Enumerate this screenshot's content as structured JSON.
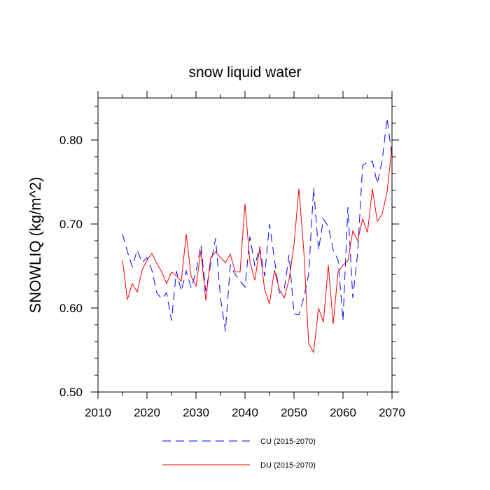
{
  "chart_data": {
    "type": "line",
    "title": "snow liquid water",
    "xlabel": "",
    "ylabel": "SNOWLIQ  (kg/m^2)",
    "xlim": [
      2010,
      2070
    ],
    "ylim": [
      0.5,
      0.85
    ],
    "xticks": [
      2010,
      2020,
      2030,
      2040,
      2050,
      2060,
      2070
    ],
    "xtick_labels": [
      "2010",
      "2020",
      "2030",
      "2040",
      "2050",
      "2060",
      "2070"
    ],
    "yticks": [
      0.5,
      0.6,
      0.7,
      0.8
    ],
    "ytick_labels": [
      "0.50",
      "0.60",
      "0.70",
      "0.80"
    ],
    "grid": false,
    "legend_position": "bottom",
    "x": [
      2015,
      2016,
      2017,
      2018,
      2019,
      2020,
      2021,
      2022,
      2023,
      2024,
      2025,
      2026,
      2027,
      2028,
      2029,
      2030,
      2031,
      2032,
      2033,
      2034,
      2035,
      2036,
      2037,
      2038,
      2039,
      2040,
      2041,
      2042,
      2043,
      2044,
      2045,
      2046,
      2047,
      2048,
      2049,
      2050,
      2051,
      2052,
      2053,
      2054,
      2055,
      2056,
      2057,
      2058,
      2059,
      2060,
      2061,
      2062,
      2063,
      2064,
      2065,
      2066,
      2067,
      2068,
      2069,
      2070
    ],
    "series": [
      {
        "name": "CU (2015-2070)",
        "color": "#0000ff",
        "style": "dashed",
        "values": [
          0.688,
          0.667,
          0.649,
          0.669,
          0.654,
          0.66,
          0.645,
          0.618,
          0.611,
          0.618,
          0.585,
          0.644,
          0.62,
          0.644,
          0.624,
          0.643,
          0.675,
          0.62,
          0.652,
          0.683,
          0.612,
          0.572,
          0.651,
          0.64,
          0.632,
          0.625,
          0.685,
          0.65,
          0.673,
          0.638,
          0.7,
          0.658,
          0.618,
          0.622,
          0.663,
          0.593,
          0.592,
          0.612,
          0.64,
          0.743,
          0.669,
          0.706,
          0.697,
          0.669,
          0.657,
          0.585,
          0.72,
          0.612,
          0.666,
          0.77,
          0.773,
          0.775,
          0.748,
          0.776,
          0.826,
          0.78
        ]
      },
      {
        "name": "DU (2015-2070)",
        "color": "#ff0000",
        "style": "solid",
        "values": [
          0.657,
          0.61,
          0.629,
          0.619,
          0.645,
          0.657,
          0.665,
          0.653,
          0.643,
          0.629,
          0.643,
          0.638,
          0.632,
          0.688,
          0.638,
          0.626,
          0.668,
          0.609,
          0.66,
          0.667,
          0.66,
          0.654,
          0.664,
          0.643,
          0.643,
          0.724,
          0.655,
          0.633,
          0.671,
          0.622,
          0.605,
          0.645,
          0.622,
          0.612,
          0.634,
          0.675,
          0.742,
          0.668,
          0.558,
          0.547,
          0.6,
          0.583,
          0.651,
          0.581,
          0.643,
          0.651,
          0.656,
          0.692,
          0.68,
          0.706,
          0.69,
          0.742,
          0.703,
          0.712,
          0.738,
          0.793
        ]
      }
    ]
  }
}
